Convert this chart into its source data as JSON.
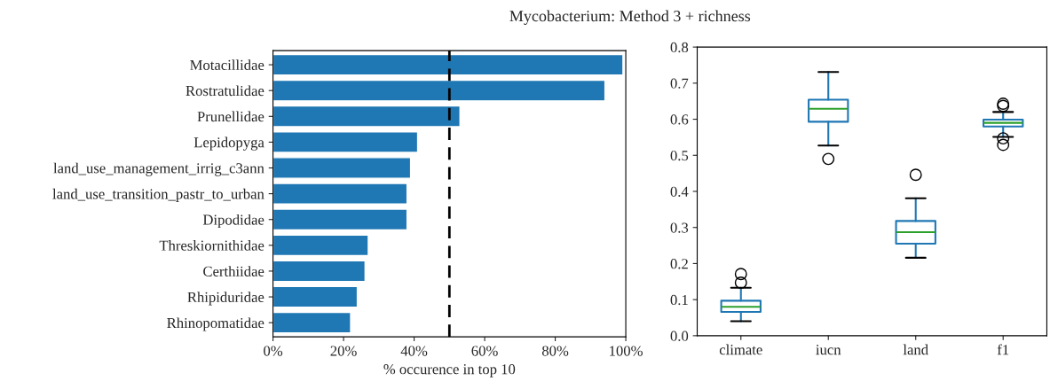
{
  "chart_data": [
    {
      "type": "bar",
      "orientation": "horizontal",
      "xlabel": "% occurence in top 10",
      "categories": [
        "Motacillidae",
        "Rostratulidae",
        "Prunellidae",
        "Lepidopyga",
        "land_use_management_irrig_c3ann",
        "land_use_transition_pastr_to_urban",
        "Dipodidae",
        "Threskiornithidae",
        "Certhiidae",
        "Rhipiduridae",
        "Rhinopomatidae"
      ],
      "values": [
        99.2,
        94.1,
        53.0,
        41.0,
        39.0,
        38.0,
        38.0,
        27.0,
        26.1,
        23.9,
        22.0
      ],
      "color": "#1f77b4",
      "xlim": [
        0,
        100
      ],
      "xticks": [
        {
          "value": 0,
          "label": "0%"
        },
        {
          "value": 20,
          "label": "20%"
        },
        {
          "value": 40,
          "label": "40%"
        },
        {
          "value": 60,
          "label": "60%"
        },
        {
          "value": 80,
          "label": "80%"
        },
        {
          "value": 100,
          "label": "100%"
        }
      ],
      "ref_lines": [
        {
          "axis": "x",
          "value": 50,
          "color": "#000000",
          "line_style": "dashed"
        }
      ],
      "grid": false,
      "legend": false
    },
    {
      "type": "box",
      "title": "Mycobacterium: Method 3 + richness",
      "categories": [
        "climate",
        "iucn",
        "land",
        "f1"
      ],
      "boxes": [
        {
          "low": 0.04,
          "q1": 0.066,
          "median": 0.08,
          "q3": 0.097,
          "high": 0.133,
          "outliers": [
            0.147,
            0.171
          ]
        },
        {
          "low": 0.527,
          "q1": 0.593,
          "median": 0.629,
          "q3": 0.654,
          "high": 0.731,
          "outliers": [
            0.49
          ]
        },
        {
          "low": 0.216,
          "q1": 0.255,
          "median": 0.287,
          "q3": 0.318,
          "high": 0.381,
          "outliers": [
            0.446
          ]
        },
        {
          "low": 0.551,
          "q1": 0.58,
          "median": 0.59,
          "q3": 0.599,
          "high": 0.62,
          "outliers": [
            0.637,
            0.643,
            0.547,
            0.529
          ]
        }
      ],
      "color": "#1f77b4",
      "ylim": [
        0,
        0.8
      ],
      "yticks": [
        {
          "value": 0,
          "label": "0.0"
        },
        0.1,
        0.2,
        0.3,
        0.4,
        0.5,
        0.6,
        0.7,
        {
          "value": 0.8,
          "label": "0.8"
        }
      ],
      "grid": false,
      "legend": false
    }
  ]
}
